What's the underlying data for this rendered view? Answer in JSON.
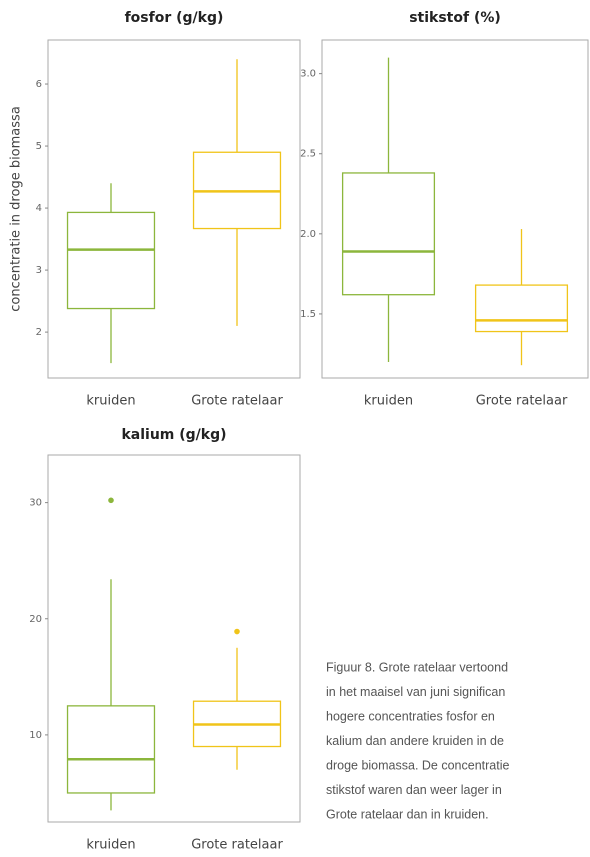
{
  "chart_data": [
    {
      "type": "box",
      "title": "fosfor (g/kg)",
      "ylabel": "concentratie in droge biomassa",
      "categories": [
        "kruiden",
        "Grote ratelaar"
      ],
      "colors": [
        "#8cb63c",
        "#f0c419"
      ],
      "boxes": [
        {
          "low": 1.5,
          "q1": 2.38,
          "median": 3.33,
          "q3": 3.93,
          "high": 4.4,
          "outliers": []
        },
        {
          "low": 2.1,
          "q1": 3.67,
          "median": 4.27,
          "q3": 4.9,
          "high": 6.4,
          "outliers": []
        }
      ],
      "ylim": [
        1.26,
        6.71
      ],
      "yticks": [
        2,
        3,
        4,
        5,
        6
      ]
    },
    {
      "type": "box",
      "title": "stikstof (%)",
      "categories": [
        "kruiden",
        "Grote ratelaar"
      ],
      "colors": [
        "#8cb63c",
        "#f0c419"
      ],
      "boxes": [
        {
          "low": 1.2,
          "q1": 1.62,
          "median": 1.89,
          "q3": 2.38,
          "high": 3.1,
          "outliers": []
        },
        {
          "low": 1.18,
          "q1": 1.39,
          "median": 1.46,
          "q3": 1.68,
          "high": 2.03,
          "outliers": []
        }
      ],
      "ylim": [
        1.1,
        3.21
      ],
      "yticks": [
        {
          "value": 1.5,
          "label": "1.5"
        },
        {
          "value": 2,
          "label": "2.0"
        },
        {
          "value": 2.5,
          "label": "2.5"
        },
        {
          "value": 3,
          "label": "3.0"
        }
      ]
    },
    {
      "type": "box",
      "title": "kalium (g/kg)",
      "categories": [
        "kruiden",
        "Grote ratelaar"
      ],
      "colors": [
        "#8cb63c",
        "#f0c419"
      ],
      "boxes": [
        {
          "low": 3.5,
          "q1": 5.0,
          "median": 7.9,
          "q3": 12.5,
          "high": 23.4,
          "outliers": [
            30.2
          ]
        },
        {
          "low": 7.0,
          "q1": 9.0,
          "median": 10.9,
          "q3": 12.9,
          "high": 17.5,
          "outliers": [
            18.9
          ]
        }
      ],
      "ylim": [
        2.5,
        34.1
      ],
      "yticks": [
        10,
        20,
        30
      ]
    }
  ],
  "caption": [
    "Figuur 8. Grote ratelaar vertoond",
    "in het maaisel van juni significan",
    "hogere concentraties fosfor en",
    "kalium dan andere kruiden in de",
    "droge biomassa. De concentratie",
    "stikstof waren dan weer lager in",
    "Grote ratelaar dan in kruiden."
  ]
}
